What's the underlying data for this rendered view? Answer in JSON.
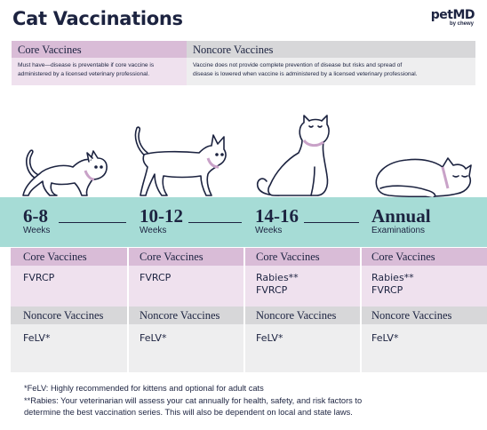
{
  "header": {
    "title": "Cat Vaccinations",
    "logo_main": "petMD",
    "logo_sub": "by chewy"
  },
  "legend": {
    "core_title": "Core Vaccines",
    "core_desc_1": "Must have—disease is preventable if core vaccine is",
    "core_desc_2": "administered by a licensed veterinary professional.",
    "noncore_title": "Noncore Vaccines",
    "noncore_desc_1": "Vaccine does not provide complete prevention of disease but risks and spread of",
    "noncore_desc_2": "disease is lowered when vaccine is administered by a licensed veterinary professional."
  },
  "stages": [
    {
      "age": "6-8",
      "unit": "Weeks",
      "core_label": "Core Vaccines",
      "core": "FVRCP",
      "noncore_label": "Noncore Vaccines",
      "noncore": "FeLV*"
    },
    {
      "age": "10-12",
      "unit": "Weeks",
      "core_label": "Core Vaccines",
      "core": "FVRCP",
      "noncore_label": "Noncore Vaccines",
      "noncore": "FeLV*"
    },
    {
      "age": "14-16",
      "unit": "Weeks",
      "core_label": "Core Vaccines",
      "core": "Rabies**\nFVRCP",
      "noncore_label": "Noncore Vaccines",
      "noncore": "FeLV*"
    },
    {
      "age": "Annual",
      "unit": "Examinations",
      "core_label": "Core Vaccines",
      "core": "Rabies**\nFVRCP",
      "noncore_label": "Noncore Vaccines",
      "noncore": "FeLV*"
    }
  ],
  "footnotes": {
    "felv": "*FeLV: Highly recommended for kittens and optional for adult cats",
    "rabies_1": "**Rabies: Your veterinarian will assess your cat annually for health, safety, and risk factors to",
    "rabies_2": "determine the best vaccination series. This will also be dependent on local and state laws."
  },
  "colors": {
    "navy": "#1c2340",
    "teal": "#a6dcd6",
    "core_head": "#d9bcd7",
    "core_body": "#efe1ee",
    "noncore_head": "#d7d7d9",
    "noncore_body": "#eeeeef"
  },
  "icons": [
    "kitten-icon",
    "young-cat-icon",
    "sitting-cat-icon",
    "sleeping-cat-icon"
  ]
}
